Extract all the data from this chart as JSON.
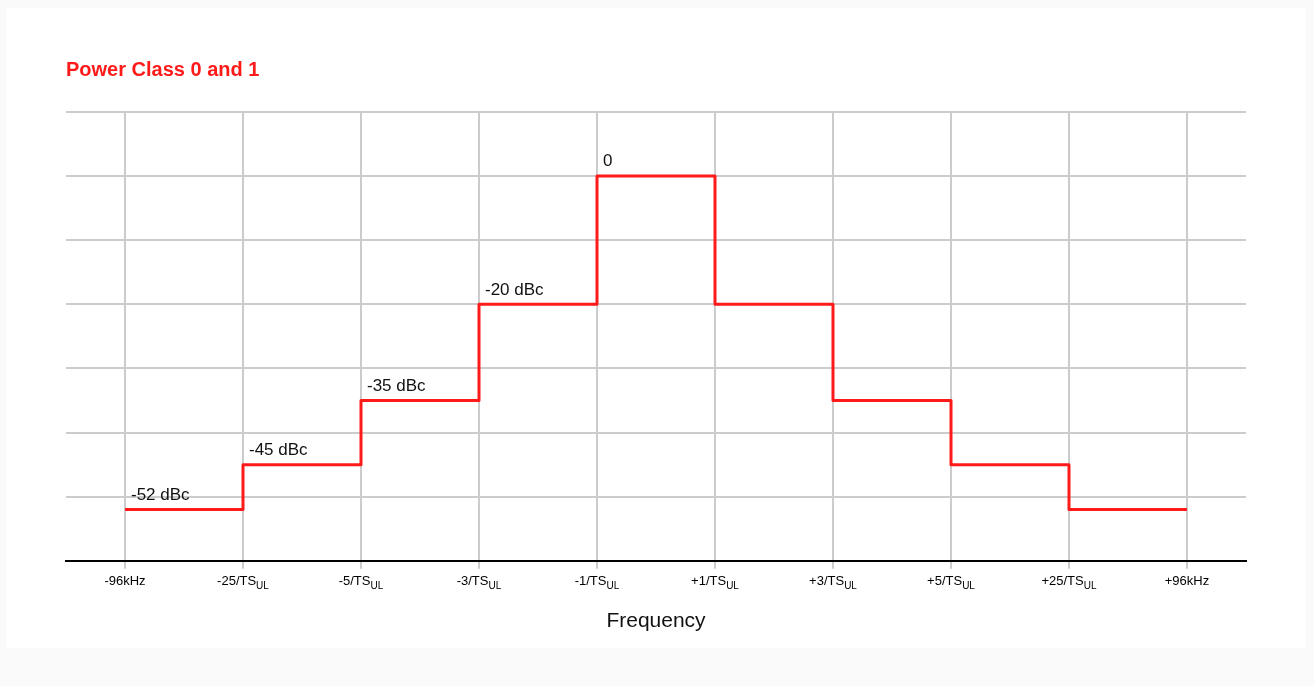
{
  "chart_data": {
    "type": "step",
    "title": "Power Class 0 and 1",
    "xlabel": "Frequency",
    "categories": [
      "-96kHz",
      "-25/TS$_{UL}$",
      "-5/TS$_{UL}$",
      "-3/TS$_{UL}$",
      "-1/TS$_{UL}$",
      "+1/TS$_{UL}$",
      "+3/TS$_{UL}$",
      "+5/TS$_{UL}$",
      "+25/TS$_{UL}$",
      "+96kHz"
    ],
    "series": [
      {
        "color": "#ff1a1a",
        "values": [
          -52,
          -45,
          -35,
          -20,
          0,
          -20,
          -35,
          -45,
          -52,
          -52
        ],
        "value_labels": [
          "-52 dBc",
          "-45 dBc",
          "-35 dBc",
          "-20 dBc",
          "0",
          null,
          null,
          null,
          null,
          null
        ]
      }
    ],
    "grid": true,
    "legend": false,
    "tick_labels": "x"
  }
}
